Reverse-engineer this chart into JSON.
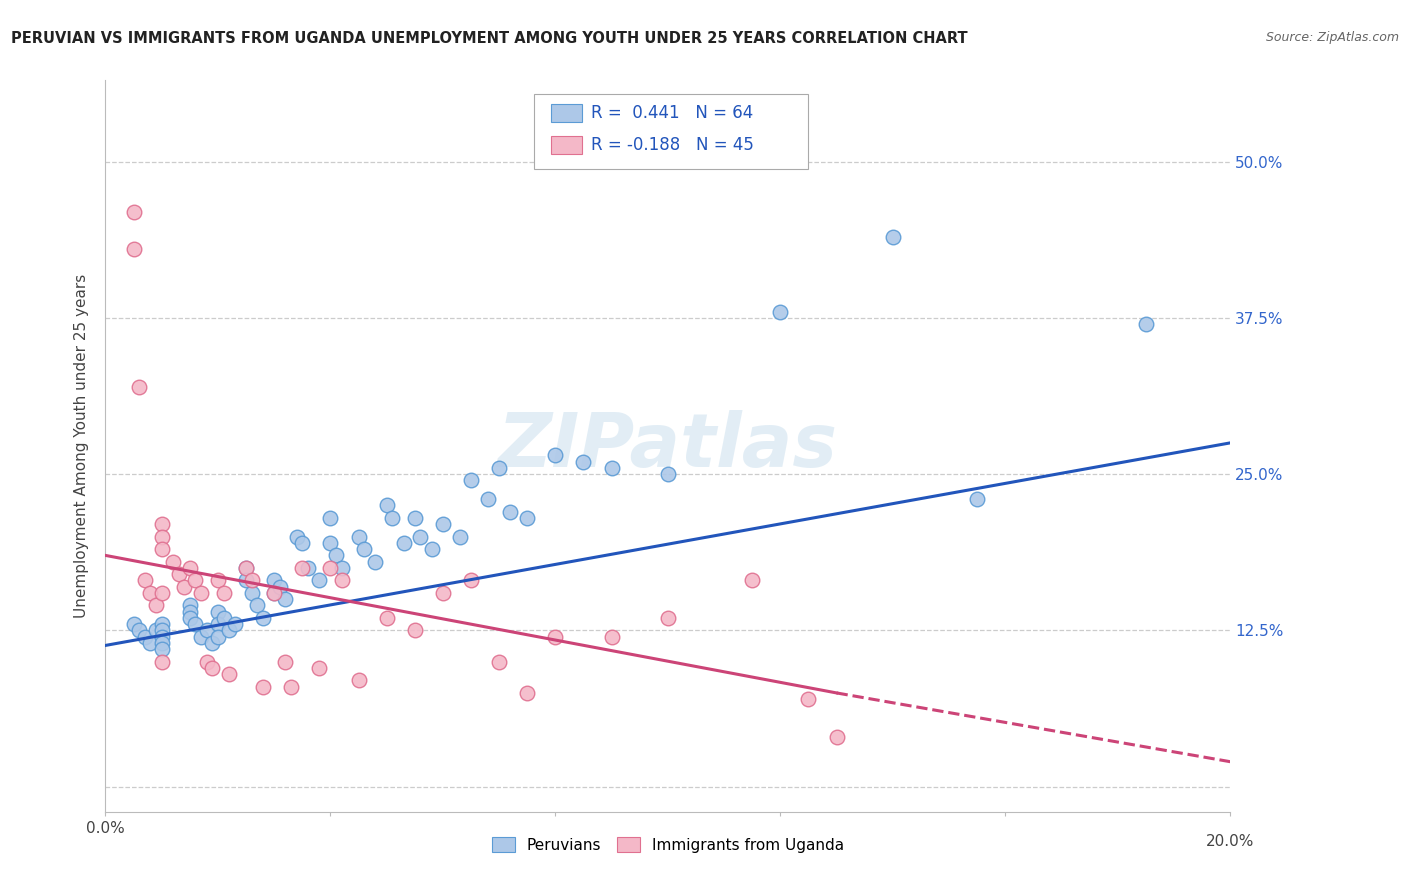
{
  "title": "PERUVIAN VS IMMIGRANTS FROM UGANDA UNEMPLOYMENT AMONG YOUTH UNDER 25 YEARS CORRELATION CHART",
  "source": "Source: ZipAtlas.com",
  "ylabel": "Unemployment Among Youth under 25 years",
  "xlim": [
    0.0,
    0.2
  ],
  "ylim": [
    -0.02,
    0.565
  ],
  "R_blue": 0.441,
  "N_blue": 64,
  "R_pink": -0.188,
  "N_pink": 45,
  "blue_color": "#adc8e8",
  "blue_edge": "#5b9bd5",
  "blue_line": "#2255bb",
  "pink_color": "#f4b8c8",
  "pink_edge": "#e07090",
  "pink_line": "#cc4477",
  "watermark": "ZIPatlas",
  "blue_trendline": [
    0.0,
    0.113,
    0.2,
    0.275
  ],
  "pink_trendline_solid": [
    0.0,
    0.185,
    0.13,
    0.075
  ],
  "pink_trendline_dashed": [
    0.13,
    0.075,
    0.2,
    0.02
  ],
  "blue_scatter_x": [
    0.005,
    0.006,
    0.007,
    0.008,
    0.009,
    0.01,
    0.01,
    0.01,
    0.01,
    0.01,
    0.015,
    0.015,
    0.015,
    0.016,
    0.017,
    0.018,
    0.019,
    0.02,
    0.02,
    0.02,
    0.021,
    0.022,
    0.023,
    0.025,
    0.025,
    0.026,
    0.027,
    0.028,
    0.03,
    0.03,
    0.031,
    0.032,
    0.034,
    0.035,
    0.036,
    0.038,
    0.04,
    0.04,
    0.041,
    0.042,
    0.045,
    0.046,
    0.048,
    0.05,
    0.051,
    0.053,
    0.055,
    0.056,
    0.058,
    0.06,
    0.063,
    0.065,
    0.068,
    0.07,
    0.072,
    0.075,
    0.08,
    0.085,
    0.09,
    0.1,
    0.12,
    0.14,
    0.155,
    0.185
  ],
  "blue_scatter_y": [
    0.13,
    0.125,
    0.12,
    0.115,
    0.125,
    0.13,
    0.125,
    0.12,
    0.115,
    0.11,
    0.145,
    0.14,
    0.135,
    0.13,
    0.12,
    0.125,
    0.115,
    0.14,
    0.13,
    0.12,
    0.135,
    0.125,
    0.13,
    0.175,
    0.165,
    0.155,
    0.145,
    0.135,
    0.165,
    0.155,
    0.16,
    0.15,
    0.2,
    0.195,
    0.175,
    0.165,
    0.215,
    0.195,
    0.185,
    0.175,
    0.2,
    0.19,
    0.18,
    0.225,
    0.215,
    0.195,
    0.215,
    0.2,
    0.19,
    0.21,
    0.2,
    0.245,
    0.23,
    0.255,
    0.22,
    0.215,
    0.265,
    0.26,
    0.255,
    0.25,
    0.38,
    0.44,
    0.23,
    0.37
  ],
  "pink_scatter_x": [
    0.005,
    0.005,
    0.006,
    0.007,
    0.008,
    0.009,
    0.01,
    0.01,
    0.01,
    0.01,
    0.01,
    0.012,
    0.013,
    0.014,
    0.015,
    0.016,
    0.017,
    0.018,
    0.019,
    0.02,
    0.021,
    0.022,
    0.025,
    0.026,
    0.028,
    0.03,
    0.032,
    0.033,
    0.035,
    0.038,
    0.04,
    0.042,
    0.045,
    0.05,
    0.055,
    0.06,
    0.065,
    0.07,
    0.075,
    0.08,
    0.09,
    0.1,
    0.115,
    0.125,
    0.13
  ],
  "pink_scatter_y": [
    0.46,
    0.43,
    0.32,
    0.165,
    0.155,
    0.145,
    0.21,
    0.2,
    0.19,
    0.155,
    0.1,
    0.18,
    0.17,
    0.16,
    0.175,
    0.165,
    0.155,
    0.1,
    0.095,
    0.165,
    0.155,
    0.09,
    0.175,
    0.165,
    0.08,
    0.155,
    0.1,
    0.08,
    0.175,
    0.095,
    0.175,
    0.165,
    0.085,
    0.135,
    0.125,
    0.155,
    0.165,
    0.1,
    0.075,
    0.12,
    0.12,
    0.135,
    0.165,
    0.07,
    0.04
  ]
}
